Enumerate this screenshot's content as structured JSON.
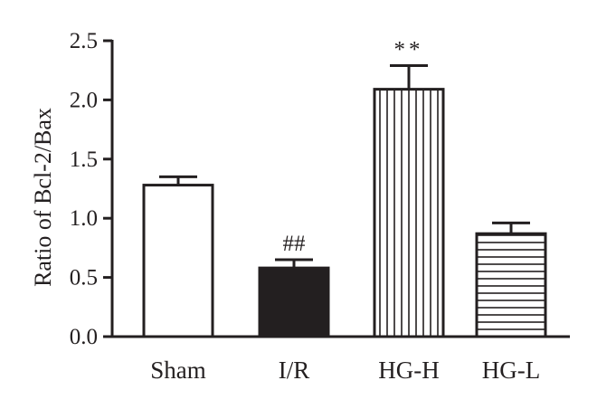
{
  "chart_data": {
    "type": "bar",
    "ylabel": "Ratio of Bcl-2/Bax",
    "xlabel": "",
    "ylim": [
      0,
      2.5
    ],
    "yticks": [
      0.0,
      0.5,
      1.0,
      1.5,
      2.0,
      2.5
    ],
    "ytick_labels": [
      "0.0",
      "0.5",
      "1.0",
      "1.5",
      "2.0",
      "2.5"
    ],
    "grid": false,
    "categories": [
      "Sham",
      "I/R",
      "HG-H",
      "HG-L"
    ],
    "values": [
      1.28,
      0.58,
      2.09,
      0.87
    ],
    "errors": [
      0.07,
      0.07,
      0.2,
      0.09
    ],
    "fills": [
      "white",
      "solid-black",
      "vertical-stripes",
      "horizontal-stripes"
    ],
    "annotations": [
      "",
      "##",
      "**",
      ""
    ]
  }
}
